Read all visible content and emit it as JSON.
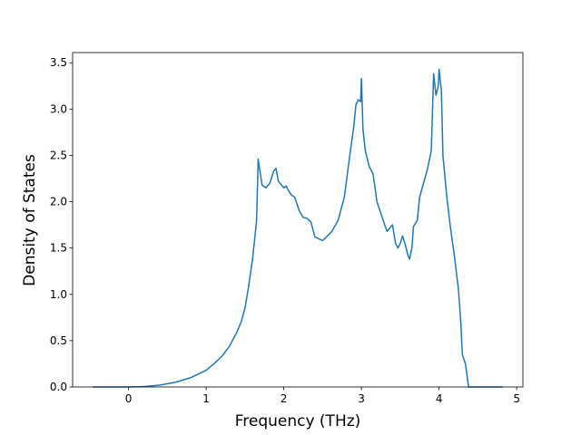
{
  "chart_data": {
    "type": "line",
    "xlabel": "Frequency (THz)",
    "ylabel": "Density of States",
    "x": [
      -0.46,
      0,
      0.2,
      0.4,
      0.6,
      0.8,
      1.0,
      1.1,
      1.2,
      1.3,
      1.4,
      1.45,
      1.5,
      1.55,
      1.6,
      1.65,
      1.67,
      1.72,
      1.77,
      1.82,
      1.87,
      1.9,
      1.93,
      1.97,
      2.0,
      2.03,
      2.06,
      2.1,
      2.14,
      2.2,
      2.25,
      2.3,
      2.35,
      2.4,
      2.5,
      2.55,
      2.62,
      2.7,
      2.78,
      2.85,
      2.9,
      2.93,
      2.96,
      2.99,
      3.0,
      3.02,
      3.05,
      3.1,
      3.15,
      3.2,
      3.3,
      3.33,
      3.37,
      3.4,
      3.44,
      3.47,
      3.5,
      3.53,
      3.56,
      3.6,
      3.62,
      3.65,
      3.67,
      3.72,
      3.75,
      3.8,
      3.85,
      3.9,
      3.93,
      3.96,
      3.99,
      4.0,
      4.03,
      4.05,
      4.1,
      4.15,
      4.2,
      4.25,
      4.28,
      4.3,
      4.34,
      4.38,
      4.82
    ],
    "series": [
      {
        "color": "#1f77b4",
        "values": [
          0,
          0,
          0.005,
          0.02,
          0.05,
          0.1,
          0.18,
          0.25,
          0.33,
          0.44,
          0.6,
          0.7,
          0.85,
          1.1,
          1.4,
          1.8,
          2.46,
          2.18,
          2.15,
          2.2,
          2.33,
          2.36,
          2.22,
          2.18,
          2.15,
          2.17,
          2.12,
          2.07,
          2.05,
          1.9,
          1.83,
          1.82,
          1.78,
          1.62,
          1.58,
          1.62,
          1.68,
          1.8,
          2.05,
          2.5,
          2.8,
          3.05,
          3.1,
          3.08,
          3.33,
          2.78,
          2.55,
          2.38,
          2.3,
          2.0,
          1.75,
          1.68,
          1.72,
          1.75,
          1.55,
          1.5,
          1.55,
          1.63,
          1.55,
          1.42,
          1.38,
          1.5,
          1.73,
          1.8,
          2.05,
          2.2,
          2.35,
          2.55,
          3.38,
          3.15,
          3.25,
          3.43,
          3.2,
          2.5,
          2.05,
          1.7,
          1.4,
          1.05,
          0.7,
          0.35,
          0.25,
          0,
          0
        ]
      }
    ],
    "xlim": [
      -0.72,
      5.08
    ],
    "xticks": [
      0,
      1,
      2,
      3,
      4,
      5
    ],
    "ylim": [
      0,
      3.61
    ],
    "yticks": [
      {
        "value": 0,
        "label": "0.0"
      },
      0.5,
      {
        "value": 1,
        "label": "1.0"
      },
      1.5,
      {
        "value": 2,
        "label": "2.0"
      },
      2.5,
      {
        "value": 3,
        "label": "3.0"
      },
      3.5
    ],
    "grid": false
  }
}
